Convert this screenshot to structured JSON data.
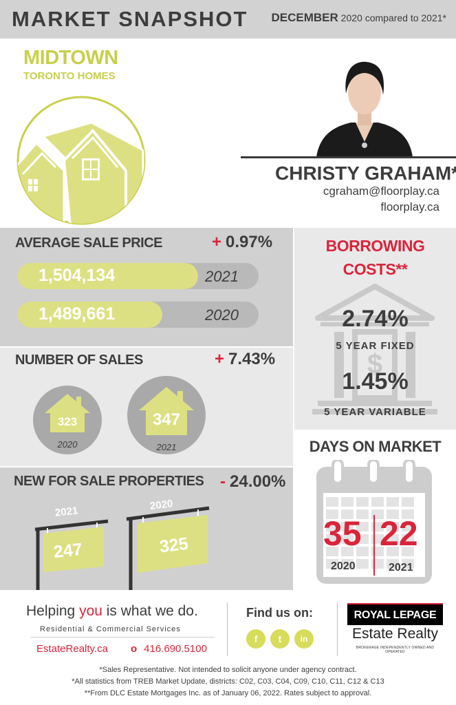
{
  "header": {
    "title": "MARKET SNAPSHOT",
    "month": "DECEMBER",
    "comparison": "2020 compared to 2021*"
  },
  "area": {
    "title": "MIDTOWN",
    "subtitle": "TORONTO HOMES",
    "logo_icon": "house-roofs-icon"
  },
  "agent": {
    "name": "CHRISTY GRAHAM*",
    "email": "cgraham@floorplay.ca",
    "website": "floorplay.ca",
    "photo": "agent-portrait"
  },
  "average_sale_price": {
    "label": "AVERAGE SALE PRICE",
    "sign": "+",
    "change": "0.97%",
    "rows": [
      {
        "value": "1,504,134",
        "year": "2021"
      },
      {
        "value": "1,489,661",
        "year": "2020"
      }
    ]
  },
  "number_of_sales": {
    "label": "NUMBER OF SALES",
    "sign": "+",
    "change": "7.43%",
    "items": [
      {
        "value": "323",
        "year": "2020"
      },
      {
        "value": "347",
        "year": "2021"
      }
    ]
  },
  "new_for_sale": {
    "label": "NEW FOR SALE PROPERTIES",
    "sign": "-",
    "change": "24.00%",
    "signs": [
      {
        "year": "2021",
        "value": "247"
      },
      {
        "year": "2020",
        "value": "325"
      }
    ]
  },
  "borrowing": {
    "title_line1": "BORROWING",
    "title_line2": "COSTS**",
    "icon": "bank-icon",
    "fixed_rate": "2.74%",
    "fixed_label": "5 YEAR FIXED",
    "variable_rate": "1.45%",
    "variable_label": "5 YEAR VARIABLE"
  },
  "days_on_market": {
    "title": "DAYS ON MARKET",
    "icon": "calendar-icon",
    "values": [
      {
        "days": "35",
        "year": "2020"
      },
      {
        "days": "22",
        "year": "2021"
      }
    ]
  },
  "footer": {
    "slogan_pre": "Helping ",
    "slogan_highlight": "you",
    "slogan_post": " is what we do.",
    "services": "Residential & Commercial Services",
    "website": "EstateRealty.ca",
    "phone_bullet": "o",
    "phone": "416.690.5100",
    "find_us": "Find us on:",
    "social": [
      {
        "icon": "facebook-icon",
        "glyph": "f"
      },
      {
        "icon": "twitter-icon",
        "glyph": "t"
      },
      {
        "icon": "linkedin-icon",
        "glyph": "in"
      }
    ],
    "brand_name": "ROYAL LEPAGE",
    "brand_sub": "Estate Realty",
    "brand_tag": "BROKERAGE INDEPENDENTLY OWNED AND OPERATED"
  },
  "disclaimers": [
    "*Sales Representative. Not intended to solicit anyone under agency contract.",
    "*All statistics from TREB Market Update, districts: C02, C03, C04, C09, C10, C11, C12 & C13",
    "**From DLC Estate Mortgages Inc. as of January 06, 2022. Rates subject to approval."
  ],
  "colors": {
    "accent_lime": "#c8cf4a",
    "accent_red": "#d9253b",
    "panel_gray": "#d0d0d0",
    "panel_light": "#e9e9e9"
  }
}
